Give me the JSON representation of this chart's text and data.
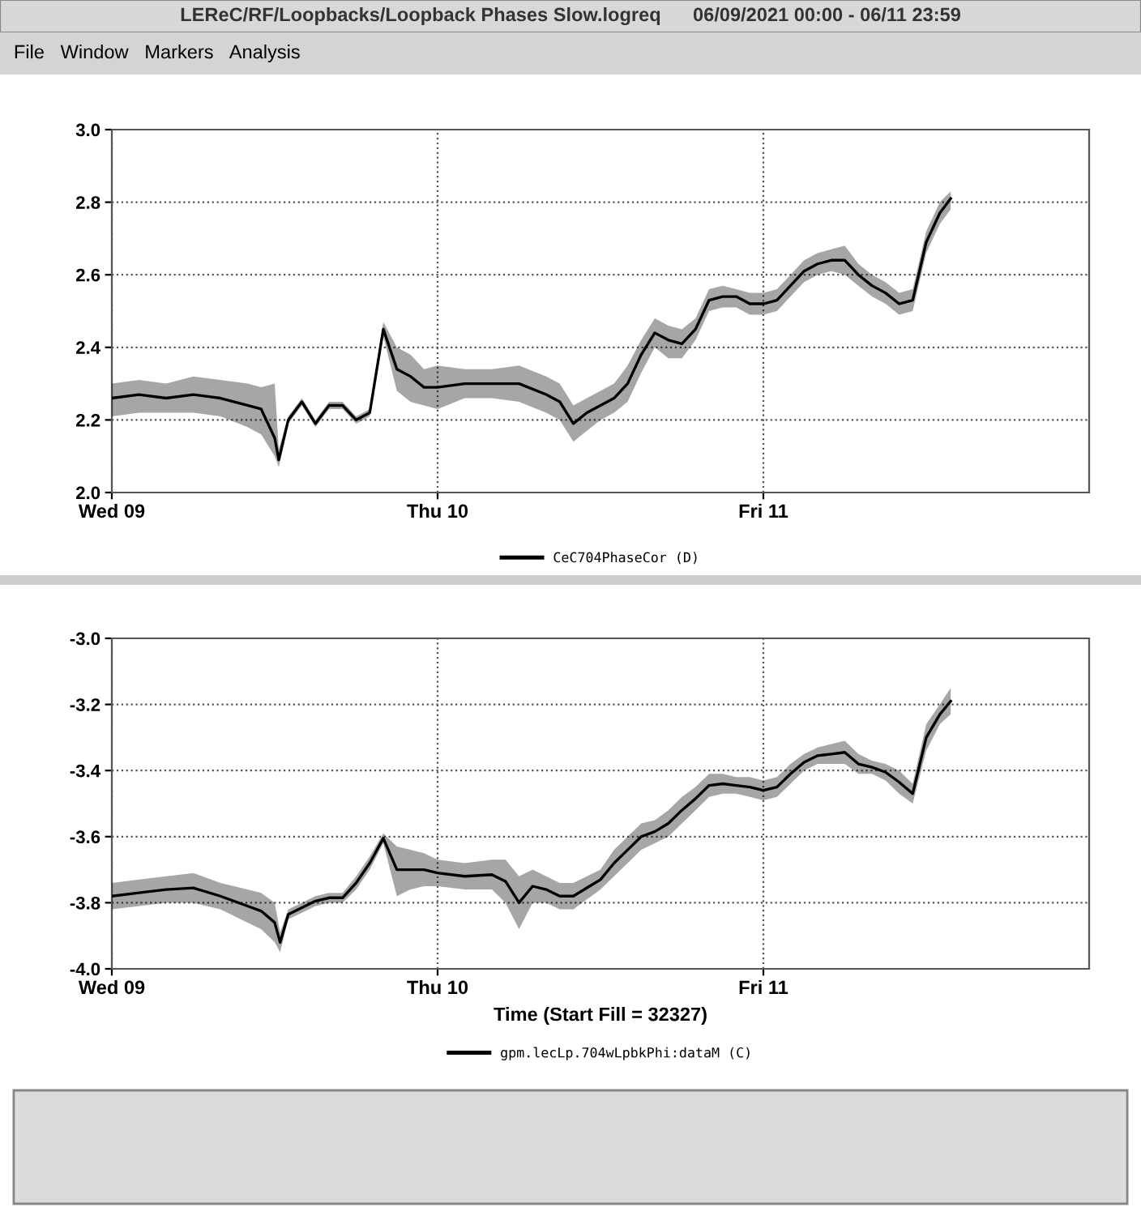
{
  "chart_data": [
    {
      "type": "line",
      "title": "LEReC/RF/Loopbacks/Loopback Phases Slow.logreq      06/09/2021 00:00 - 06/11 23:59",
      "annotations": [
        "File",
        "Window",
        "Markers",
        "Analysis"
      ],
      "x": [
        "2021-06-09T00:00",
        "2021-06-09T02:00",
        "2021-06-09T04:00",
        "2021-06-09T06:00",
        "2021-06-09T08:00",
        "2021-06-09T10:00",
        "2021-06-09T11:00",
        "2021-06-09T12:00",
        "2021-06-09T12:18",
        "2021-06-09T13:00",
        "2021-06-09T14:00",
        "2021-06-09T15:00",
        "2021-06-09T16:00",
        "2021-06-09T17:00",
        "2021-06-09T18:00",
        "2021-06-09T19:00",
        "2021-06-09T20:00",
        "2021-06-09T21:00",
        "2021-06-09T22:00",
        "2021-06-09T23:00",
        "2021-06-10T00:00",
        "2021-06-10T02:00",
        "2021-06-10T04:00",
        "2021-06-10T06:00",
        "2021-06-10T08:00",
        "2021-06-10T09:00",
        "2021-06-10T10:00",
        "2021-06-10T11:00",
        "2021-06-10T12:00",
        "2021-06-10T13:00",
        "2021-06-10T14:00",
        "2021-06-10T15:00",
        "2021-06-10T16:00",
        "2021-06-10T17:00",
        "2021-06-10T18:00",
        "2021-06-10T19:00",
        "2021-06-10T20:00",
        "2021-06-10T21:00",
        "2021-06-10T22:00",
        "2021-06-10T23:00",
        "2021-06-11T00:00",
        "2021-06-11T01:00",
        "2021-06-11T02:00",
        "2021-06-11T03:00",
        "2021-06-11T04:00",
        "2021-06-11T05:00",
        "2021-06-11T06:00",
        "2021-06-11T07:00",
        "2021-06-11T08:00",
        "2021-06-11T09:00",
        "2021-06-11T10:00",
        "2021-06-11T11:00",
        "2021-06-11T12:00",
        "2021-06-11T13:00",
        "2021-06-11T13:48"
      ],
      "series": [
        {
          "name": "CeC704PhaseCor (D)",
          "color": "#000000",
          "values": [
            2.26,
            2.27,
            2.26,
            2.27,
            2.26,
            2.24,
            2.23,
            2.15,
            2.09,
            2.2,
            2.25,
            2.19,
            2.24,
            2.24,
            2.2,
            2.22,
            2.45,
            2.34,
            2.32,
            2.29,
            2.29,
            2.3,
            2.3,
            2.3,
            2.27,
            2.25,
            2.19,
            2.22,
            2.24,
            2.26,
            2.3,
            2.38,
            2.44,
            2.42,
            2.41,
            2.45,
            2.53,
            2.54,
            2.54,
            2.52,
            2.52,
            2.53,
            2.57,
            2.61,
            2.63,
            2.64,
            2.64,
            2.6,
            2.57,
            2.55,
            2.52,
            2.53,
            2.69,
            2.77,
            2.81
          ],
          "lower": [
            2.21,
            2.22,
            2.22,
            2.22,
            2.21,
            2.18,
            2.16,
            2.1,
            2.07,
            2.19,
            2.24,
            2.18,
            2.23,
            2.23,
            2.19,
            2.21,
            2.43,
            2.28,
            2.25,
            2.24,
            2.23,
            2.26,
            2.26,
            2.25,
            2.22,
            2.2,
            2.14,
            2.17,
            2.2,
            2.22,
            2.25,
            2.33,
            2.4,
            2.37,
            2.37,
            2.42,
            2.5,
            2.51,
            2.51,
            2.49,
            2.49,
            2.5,
            2.54,
            2.58,
            2.6,
            2.61,
            2.6,
            2.57,
            2.54,
            2.52,
            2.49,
            2.5,
            2.66,
            2.74,
            2.78
          ],
          "upper": [
            2.3,
            2.31,
            2.3,
            2.32,
            2.31,
            2.3,
            2.29,
            2.3,
            2.12,
            2.21,
            2.26,
            2.2,
            2.25,
            2.25,
            2.21,
            2.23,
            2.47,
            2.4,
            2.38,
            2.34,
            2.35,
            2.34,
            2.34,
            2.35,
            2.32,
            2.3,
            2.24,
            2.26,
            2.28,
            2.3,
            2.35,
            2.42,
            2.48,
            2.46,
            2.45,
            2.48,
            2.56,
            2.57,
            2.56,
            2.55,
            2.55,
            2.56,
            2.6,
            2.64,
            2.66,
            2.67,
            2.68,
            2.63,
            2.6,
            2.58,
            2.55,
            2.56,
            2.72,
            2.8,
            2.83
          ]
        }
      ],
      "xlim": [
        "2021-06-09T00:00",
        "2021-06-12T00:00"
      ],
      "xticks": [
        {
          "value": "2021-06-09",
          "label": "Wed 09"
        },
        {
          "value": "2021-06-10",
          "label": "Thu 10"
        },
        {
          "value": "2021-06-11",
          "label": "Fri 11"
        }
      ],
      "ylim": [
        2.0,
        3.0
      ],
      "yticks": [
        {
          "value": 2.0,
          "label": "2.0"
        },
        2.2,
        2.4,
        2.6,
        2.8,
        {
          "value": 3.0,
          "label": "3.0"
        }
      ],
      "grid": true,
      "legend": "bottom"
    },
    {
      "type": "line",
      "xlabel": "Time (Start Fill = 32327)",
      "x": [
        "2021-06-09T00:00",
        "2021-06-09T02:00",
        "2021-06-09T04:00",
        "2021-06-09T06:00",
        "2021-06-09T08:00",
        "2021-06-09T10:00",
        "2021-06-09T11:00",
        "2021-06-09T12:00",
        "2021-06-09T12:24",
        "2021-06-09T13:00",
        "2021-06-09T14:00",
        "2021-06-09T15:00",
        "2021-06-09T16:00",
        "2021-06-09T17:00",
        "2021-06-09T18:00",
        "2021-06-09T19:00",
        "2021-06-09T20:00",
        "2021-06-09T21:00",
        "2021-06-09T22:00",
        "2021-06-09T23:00",
        "2021-06-10T00:00",
        "2021-06-10T02:00",
        "2021-06-10T04:00",
        "2021-06-10T05:00",
        "2021-06-10T06:00",
        "2021-06-10T07:00",
        "2021-06-10T08:00",
        "2021-06-10T09:00",
        "2021-06-10T10:00",
        "2021-06-10T11:00",
        "2021-06-10T12:00",
        "2021-06-10T13:00",
        "2021-06-10T14:00",
        "2021-06-10T15:00",
        "2021-06-10T16:00",
        "2021-06-10T17:00",
        "2021-06-10T18:00",
        "2021-06-10T19:00",
        "2021-06-10T20:00",
        "2021-06-10T21:00",
        "2021-06-10T22:00",
        "2021-06-10T23:00",
        "2021-06-11T00:00",
        "2021-06-11T01:00",
        "2021-06-11T02:00",
        "2021-06-11T03:00",
        "2021-06-11T04:00",
        "2021-06-11T05:00",
        "2021-06-11T06:00",
        "2021-06-11T07:00",
        "2021-06-11T08:00",
        "2021-06-11T09:00",
        "2021-06-11T10:00",
        "2021-06-11T11:00",
        "2021-06-11T12:00",
        "2021-06-11T13:00",
        "2021-06-11T13:48"
      ],
      "series": [
        {
          "name": "gpm.lecLp.704wLpbkPhi:dataM (C)",
          "color": "#000000",
          "values": [
            -3.78,
            -3.77,
            -3.76,
            -3.755,
            -3.78,
            -3.81,
            -3.825,
            -3.86,
            -3.92,
            -3.835,
            -3.815,
            -3.795,
            -3.785,
            -3.785,
            -3.74,
            -3.68,
            -3.605,
            -3.7,
            -3.7,
            -3.7,
            -3.71,
            -3.72,
            -3.715,
            -3.735,
            -3.8,
            -3.75,
            -3.76,
            -3.78,
            -3.78,
            -3.755,
            -3.73,
            -3.68,
            -3.64,
            -3.6,
            -3.585,
            -3.56,
            -3.52,
            -3.485,
            -3.445,
            -3.44,
            -3.445,
            -3.45,
            -3.46,
            -3.45,
            -3.41,
            -3.375,
            -3.355,
            -3.35,
            -3.345,
            -3.38,
            -3.39,
            -3.405,
            -3.435,
            -3.47,
            -3.3,
            -3.23,
            -3.19
          ],
          "lower": [
            -3.82,
            -3.81,
            -3.8,
            -3.8,
            -3.82,
            -3.86,
            -3.88,
            -3.92,
            -3.95,
            -3.85,
            -3.83,
            -3.81,
            -3.8,
            -3.8,
            -3.76,
            -3.7,
            -3.62,
            -3.78,
            -3.76,
            -3.75,
            -3.75,
            -3.76,
            -3.76,
            -3.8,
            -3.88,
            -3.8,
            -3.8,
            -3.82,
            -3.82,
            -3.79,
            -3.76,
            -3.72,
            -3.68,
            -3.64,
            -3.62,
            -3.6,
            -3.56,
            -3.52,
            -3.48,
            -3.47,
            -3.47,
            -3.48,
            -3.49,
            -3.48,
            -3.44,
            -3.4,
            -3.38,
            -3.38,
            -3.38,
            -3.41,
            -3.41,
            -3.43,
            -3.47,
            -3.5,
            -3.34,
            -3.26,
            -3.23
          ],
          "upper": [
            -3.74,
            -3.73,
            -3.72,
            -3.71,
            -3.74,
            -3.76,
            -3.77,
            -3.8,
            -3.89,
            -3.82,
            -3.8,
            -3.78,
            -3.77,
            -3.77,
            -3.72,
            -3.66,
            -3.59,
            -3.63,
            -3.64,
            -3.65,
            -3.67,
            -3.68,
            -3.67,
            -3.67,
            -3.72,
            -3.7,
            -3.72,
            -3.74,
            -3.74,
            -3.72,
            -3.7,
            -3.64,
            -3.6,
            -3.56,
            -3.55,
            -3.52,
            -3.48,
            -3.45,
            -3.41,
            -3.41,
            -3.42,
            -3.42,
            -3.43,
            -3.42,
            -3.38,
            -3.35,
            -3.33,
            -3.32,
            -3.31,
            -3.35,
            -3.37,
            -3.38,
            -3.4,
            -3.44,
            -3.26,
            -3.2,
            -3.15
          ]
        }
      ],
      "xlim": [
        "2021-06-09T00:00",
        "2021-06-12T00:00"
      ],
      "xticks": [
        {
          "value": "2021-06-09",
          "label": "Wed 09"
        },
        {
          "value": "2021-06-10",
          "label": "Thu 10"
        },
        {
          "value": "2021-06-11",
          "label": "Fri 11"
        }
      ],
      "ylim": [
        -4.0,
        -3.0
      ],
      "yticks": [
        {
          "value": -4.0,
          "label": "-4.0"
        },
        {
          "value": -3.8,
          "label": "-3.8"
        },
        {
          "value": -3.6,
          "label": "-3.6"
        },
        {
          "value": -3.4,
          "label": "-3.4"
        },
        {
          "value": -3.2,
          "label": "-3.2"
        },
        {
          "value": -3.0,
          "label": "-3.0"
        }
      ],
      "grid": true,
      "legend": "bottom"
    }
  ]
}
